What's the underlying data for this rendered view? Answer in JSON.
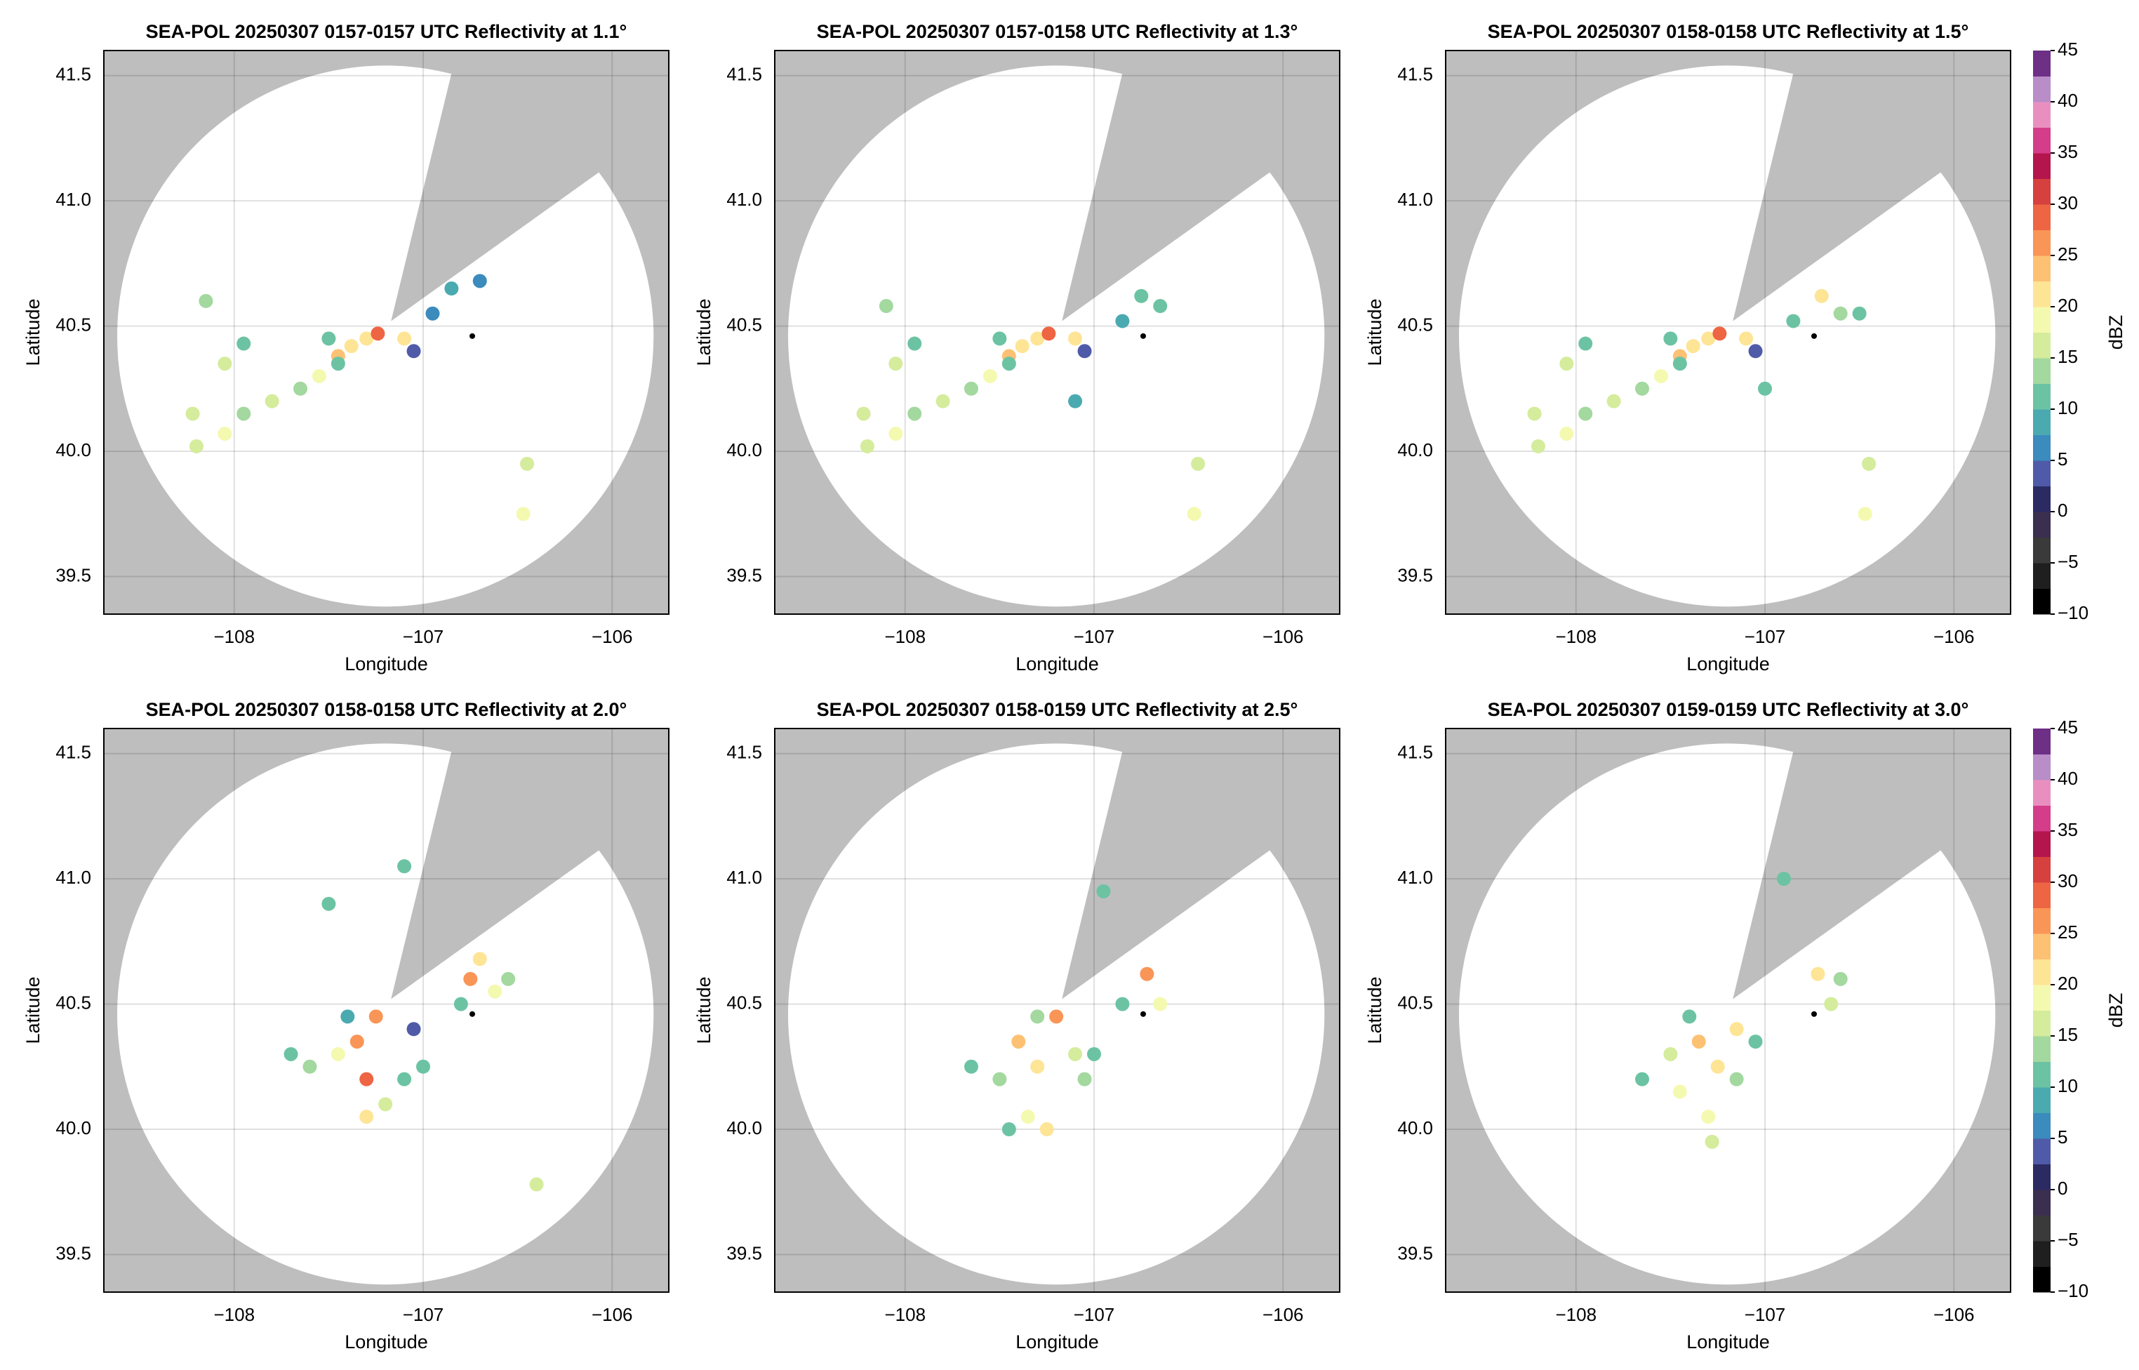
{
  "radar": {
    "center": [
      -107.2,
      40.46
    ],
    "radius_deg_lat": 1.08,
    "blocked_sector": {
      "lon": [
        -107.17,
        -106.84,
        -106.04
      ],
      "lat": [
        40.52,
        41.54,
        41.13
      ]
    },
    "marker": [
      -106.74,
      40.46
    ]
  },
  "colorbar": {
    "label": "dBZ",
    "lim": [
      -10,
      45
    ],
    "ticks": [
      {
        "value": -10,
        "label": "−10"
      },
      {
        "value": -5,
        "label": "−5"
      },
      0,
      5,
      10,
      15,
      20,
      25,
      30,
      35,
      40,
      45
    ],
    "colors": [
      "#000000",
      "#1f1f1f",
      "#3a3a3a",
      "#3b2f4f",
      "#2b2a63",
      "#4f5ba8",
      "#3b8bbd",
      "#4aaab0",
      "#6cc3a4",
      "#a3d89f",
      "#d4ec9c",
      "#f4f9b0",
      "#fee495",
      "#fdc173",
      "#f99557",
      "#ee6544",
      "#d6403e",
      "#b4154d",
      "#d43d8a",
      "#e98fc0",
      "#b88dc8",
      "#6e2f86"
    ]
  },
  "chart_data": [
    {
      "type": "scatter",
      "title": "SEA-POL 20250307 0157-0157 UTC Reflectivity at 1.1°",
      "x_label": "Longitude",
      "y_label": "Latitude",
      "xlim": [
        -108.69,
        -105.7
      ],
      "ylim": [
        39.35,
        41.6
      ],
      "xticks": [
        {
          "value": -108,
          "label": "−108"
        },
        {
          "value": -107,
          "label": "−107"
        },
        {
          "value": -106,
          "label": "−106"
        }
      ],
      "yticks": [
        39.5,
        {
          "value": 40,
          "label": "40.0"
        },
        40.5,
        {
          "value": 41,
          "label": "41.0"
        },
        41.5
      ],
      "grid": true,
      "colorbar": false,
      "echoes": {
        "lon": [
          -108.2,
          -108.05,
          -108.22,
          -107.95,
          -107.8,
          -107.65,
          -107.55,
          -107.45,
          -107.38,
          -107.3,
          -107.24,
          -107.5,
          -107.45,
          -108.05,
          -107.95,
          -108.15,
          -107.1,
          -107.05,
          -106.95,
          -106.85,
          -106.7,
          -106.45,
          -106.47
        ],
        "lat": [
          40.02,
          40.07,
          40.15,
          40.15,
          40.2,
          40.25,
          40.3,
          40.38,
          40.42,
          40.45,
          40.47,
          40.45,
          40.35,
          40.35,
          40.43,
          40.6,
          40.45,
          40.4,
          40.55,
          40.65,
          40.68,
          39.95,
          39.75
        ],
        "dbz": [
          15,
          18,
          17,
          14,
          16,
          14,
          18,
          24,
          22,
          20,
          28,
          10,
          12,
          15,
          12,
          14,
          22,
          3,
          5,
          8,
          6,
          16,
          18
        ]
      }
    },
    {
      "type": "scatter",
      "title": "SEA-POL 20250307 0157-0158 UTC Reflectivity at 1.3°",
      "x_label": "Longitude",
      "y_label": "Latitude",
      "xlim": [
        -108.69,
        -105.7
      ],
      "ylim": [
        39.35,
        41.6
      ],
      "xticks": [
        {
          "value": -108,
          "label": "−108"
        },
        {
          "value": -107,
          "label": "−107"
        },
        {
          "value": -106,
          "label": "−106"
        }
      ],
      "yticks": [
        39.5,
        {
          "value": 40,
          "label": "40.0"
        },
        40.5,
        {
          "value": 41,
          "label": "41.0"
        },
        41.5
      ],
      "grid": true,
      "colorbar": false,
      "echoes": {
        "lon": [
          -108.2,
          -108.05,
          -108.22,
          -107.95,
          -107.8,
          -107.65,
          -107.55,
          -107.45,
          -107.38,
          -107.3,
          -107.24,
          -107.5,
          -107.45,
          -108.05,
          -107.95,
          -108.1,
          -107.1,
          -107.05,
          -106.75,
          -106.65,
          -106.85,
          -107.1,
          -106.45,
          -106.47
        ],
        "lat": [
          40.02,
          40.07,
          40.15,
          40.15,
          40.2,
          40.25,
          40.3,
          40.38,
          40.42,
          40.45,
          40.47,
          40.45,
          40.35,
          40.35,
          40.43,
          40.58,
          40.45,
          40.4,
          40.62,
          40.58,
          40.52,
          40.2,
          39.95,
          39.75
        ],
        "dbz": [
          15,
          18,
          17,
          14,
          16,
          14,
          18,
          24,
          22,
          20,
          28,
          10,
          12,
          15,
          12,
          14,
          22,
          3,
          12,
          10,
          8,
          8,
          16,
          18
        ]
      }
    },
    {
      "type": "scatter",
      "title": "SEA-POL 20250307 0158-0158 UTC Reflectivity at 1.5°",
      "x_label": "Longitude",
      "y_label": "Latitude",
      "xlim": [
        -108.69,
        -105.7
      ],
      "ylim": [
        39.35,
        41.6
      ],
      "xticks": [
        {
          "value": -108,
          "label": "−108"
        },
        {
          "value": -107,
          "label": "−107"
        },
        {
          "value": -106,
          "label": "−106"
        }
      ],
      "yticks": [
        39.5,
        {
          "value": 40,
          "label": "40.0"
        },
        40.5,
        {
          "value": 41,
          "label": "41.0"
        },
        41.5
      ],
      "grid": true,
      "colorbar": true,
      "echoes": {
        "lon": [
          -108.2,
          -108.05,
          -108.22,
          -107.95,
          -107.8,
          -107.65,
          -107.55,
          -107.45,
          -107.38,
          -107.3,
          -107.24,
          -107.5,
          -107.45,
          -108.05,
          -107.95,
          -107.1,
          -107.05,
          -106.7,
          -106.6,
          -106.5,
          -106.85,
          -107.0,
          -106.45,
          -106.47
        ],
        "lat": [
          40.02,
          40.07,
          40.15,
          40.15,
          40.2,
          40.25,
          40.3,
          40.38,
          40.42,
          40.45,
          40.47,
          40.45,
          40.35,
          40.35,
          40.43,
          40.45,
          40.4,
          40.62,
          40.55,
          40.55,
          40.52,
          40.25,
          39.95,
          39.75
        ],
        "dbz": [
          15,
          18,
          17,
          14,
          16,
          14,
          18,
          24,
          22,
          20,
          28,
          10,
          12,
          15,
          12,
          22,
          3,
          20,
          14,
          12,
          10,
          10,
          16,
          18
        ]
      }
    },
    {
      "type": "scatter",
      "title": "SEA-POL 20250307 0158-0158 UTC Reflectivity at 2.0°",
      "x_label": "Longitude",
      "y_label": "Latitude",
      "xlim": [
        -108.69,
        -105.7
      ],
      "ylim": [
        39.35,
        41.6
      ],
      "xticks": [
        {
          "value": -108,
          "label": "−108"
        },
        {
          "value": -107,
          "label": "−107"
        },
        {
          "value": -106,
          "label": "−106"
        }
      ],
      "yticks": [
        39.5,
        {
          "value": 40,
          "label": "40.0"
        },
        40.5,
        {
          "value": 41,
          "label": "41.0"
        },
        41.5
      ],
      "grid": true,
      "colorbar": false,
      "echoes": {
        "lon": [
          -106.75,
          -106.7,
          -106.62,
          -106.55,
          -106.8,
          -107.35,
          -107.3,
          -107.45,
          -107.6,
          -107.7,
          -107.3,
          -107.2,
          -107.4,
          -107.25,
          -107.1,
          -107.0,
          -107.05,
          -106.4,
          -107.1,
          -107.5
        ],
        "lat": [
          40.6,
          40.68,
          40.55,
          40.6,
          40.5,
          40.35,
          40.2,
          40.3,
          40.25,
          40.3,
          40.05,
          40.1,
          40.45,
          40.45,
          40.2,
          40.25,
          40.4,
          39.78,
          41.05,
          40.9
        ],
        "dbz": [
          25,
          22,
          18,
          14,
          12,
          25,
          28,
          18,
          14,
          12,
          20,
          17,
          8,
          26,
          12,
          10,
          3,
          17,
          10,
          12
        ]
      }
    },
    {
      "type": "scatter",
      "title": "SEA-POL 20250307 0158-0159 UTC Reflectivity at 2.5°",
      "x_label": "Longitude",
      "y_label": "Latitude",
      "xlim": [
        -108.69,
        -105.7
      ],
      "ylim": [
        39.35,
        41.6
      ],
      "xticks": [
        {
          "value": -108,
          "label": "−108"
        },
        {
          "value": -107,
          "label": "−107"
        },
        {
          "value": -106,
          "label": "−106"
        }
      ],
      "yticks": [
        39.5,
        {
          "value": 40,
          "label": "40.0"
        },
        40.5,
        {
          "value": 41,
          "label": "41.0"
        },
        41.5
      ],
      "grid": true,
      "colorbar": false,
      "echoes": {
        "lon": [
          -106.72,
          -106.65,
          -106.85,
          -107.4,
          -107.3,
          -107.5,
          -107.65,
          -107.35,
          -107.25,
          -107.45,
          -107.1,
          -107.0,
          -107.2,
          -107.3,
          -107.05,
          -106.95
        ],
        "lat": [
          40.62,
          40.5,
          40.5,
          40.35,
          40.25,
          40.2,
          40.25,
          40.05,
          40.0,
          40.0,
          40.3,
          40.3,
          40.45,
          40.45,
          40.2,
          40.95
        ],
        "dbz": [
          26,
          18,
          10,
          24,
          22,
          14,
          12,
          18,
          20,
          12,
          15,
          10,
          26,
          14,
          14,
          10
        ]
      }
    },
    {
      "type": "scatter",
      "title": "SEA-POL 20250307 0159-0159 UTC Reflectivity at 3.0°",
      "x_label": "Longitude",
      "y_label": "Latitude",
      "xlim": [
        -108.69,
        -105.7
      ],
      "ylim": [
        39.35,
        41.6
      ],
      "xticks": [
        {
          "value": -108,
          "label": "−108"
        },
        {
          "value": -107,
          "label": "−107"
        },
        {
          "value": -106,
          "label": "−106"
        }
      ],
      "yticks": [
        39.5,
        {
          "value": 40,
          "label": "40.0"
        },
        40.5,
        {
          "value": 41,
          "label": "41.0"
        },
        41.5
      ],
      "grid": true,
      "colorbar": true,
      "echoes": {
        "lon": [
          -106.72,
          -106.65,
          -106.6,
          -107.35,
          -107.25,
          -107.5,
          -107.65,
          -107.45,
          -107.3,
          -107.28,
          -107.15,
          -107.05,
          -107.15,
          -107.4,
          -106.9
        ],
        "lat": [
          40.62,
          40.5,
          40.6,
          40.35,
          40.25,
          40.3,
          40.2,
          40.15,
          40.05,
          39.95,
          40.4,
          40.35,
          40.2,
          40.45,
          41.0
        ],
        "dbz": [
          22,
          16,
          14,
          24,
          20,
          15,
          12,
          18,
          18,
          16,
          22,
          12,
          14,
          10,
          10
        ]
      }
    }
  ]
}
